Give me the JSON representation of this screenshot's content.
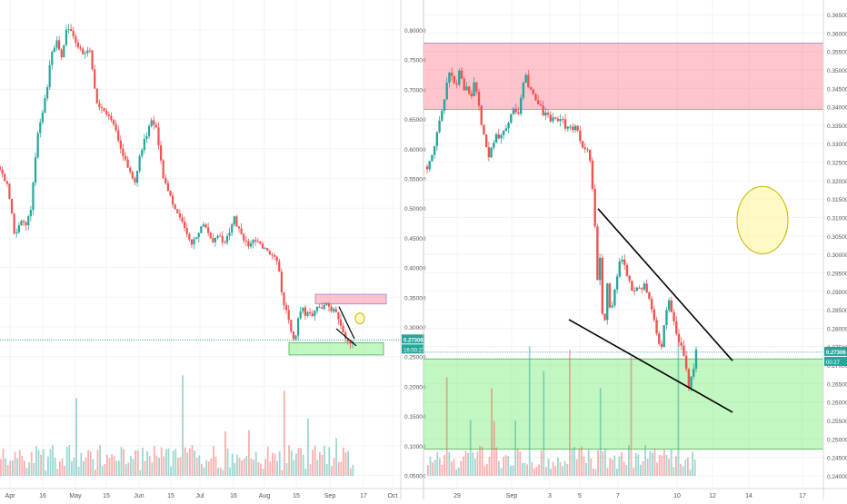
{
  "chart_data": [
    {
      "type": "candlestick",
      "panel": "left",
      "x_tick_labels": [
        "Apr",
        "16",
        "May",
        "15",
        "Jun",
        "15",
        "Jul",
        "16",
        "Aug",
        "15",
        "Sep",
        "17",
        "Oct"
      ],
      "y_tick_labels": [
        "0.80000",
        "0.75000",
        "0.70000",
        "0.65000",
        "0.60000",
        "0.55000",
        "0.50000",
        "0.45000",
        "0.40000",
        "0.35000",
        "0.30000",
        "0.25000",
        "0.20000",
        "0.15000",
        "0.10000",
        "0.05000"
      ],
      "ylim": [
        0.02,
        0.85
      ],
      "price_line": 0.27306,
      "price_label": "0.27306",
      "time_label": "16:00:27",
      "close_path": [
        [
          0,
          0.595
        ],
        [
          8,
          0.56
        ],
        [
          12,
          0.52
        ],
        [
          16,
          0.47
        ],
        [
          22,
          0.49
        ],
        [
          30,
          0.49
        ],
        [
          34,
          0.52
        ],
        [
          38,
          0.6
        ],
        [
          42,
          0.66
        ],
        [
          48,
          0.71
        ],
        [
          52,
          0.74
        ],
        [
          56,
          0.8
        ],
        [
          62,
          0.83
        ],
        [
          68,
          0.8
        ],
        [
          74,
          0.86
        ],
        [
          80,
          0.84
        ],
        [
          86,
          0.82
        ],
        [
          92,
          0.8
        ],
        [
          98,
          0.82
        ],
        [
          102,
          0.77
        ],
        [
          106,
          0.72
        ],
        [
          110,
          0.7
        ],
        [
          116,
          0.7
        ],
        [
          122,
          0.68
        ],
        [
          128,
          0.66
        ],
        [
          134,
          0.62
        ],
        [
          138,
          0.61
        ],
        [
          144,
          0.58
        ],
        [
          148,
          0.56
        ],
        [
          154,
          0.62
        ],
        [
          160,
          0.65
        ],
        [
          166,
          0.68
        ],
        [
          172,
          0.67
        ],
        [
          176,
          0.62
        ],
        [
          180,
          0.57
        ],
        [
          186,
          0.55
        ],
        [
          192,
          0.52
        ],
        [
          198,
          0.5
        ],
        [
          204,
          0.48
        ],
        [
          210,
          0.45
        ],
        [
          216,
          0.46
        ],
        [
          222,
          0.49
        ],
        [
          228,
          0.48
        ],
        [
          234,
          0.45
        ],
        [
          240,
          0.47
        ],
        [
          246,
          0.45
        ],
        [
          252,
          0.47
        ],
        [
          258,
          0.5
        ],
        [
          262,
          0.48
        ],
        [
          268,
          0.46
        ],
        [
          274,
          0.45
        ],
        [
          280,
          0.46
        ],
        [
          286,
          0.45
        ],
        [
          292,
          0.44
        ],
        [
          298,
          0.43
        ],
        [
          304,
          0.42
        ],
        [
          308,
          0.39
        ],
        [
          312,
          0.34
        ],
        [
          316,
          0.32
        ],
        [
          320,
          0.29
        ],
        [
          324,
          0.27
        ],
        [
          328,
          0.31
        ],
        [
          332,
          0.34
        ],
        [
          336,
          0.32
        ],
        [
          340,
          0.33
        ],
        [
          344,
          0.32
        ],
        [
          348,
          0.33
        ],
        [
          352,
          0.33
        ],
        [
          356,
          0.34
        ],
        [
          360,
          0.34
        ],
        [
          364,
          0.33
        ],
        [
          368,
          0.33
        ],
        [
          372,
          0.31
        ],
        [
          376,
          0.3
        ],
        [
          380,
          0.28
        ],
        [
          384,
          0.27
        ],
        [
          388,
          0.27
        ]
      ],
      "annotations": [
        {
          "kind": "zone",
          "color": "red",
          "y_range": [
            0.34,
            0.358
          ],
          "x_range": [
            347,
            425
          ]
        },
        {
          "kind": "zone",
          "color": "green",
          "y_range": [
            0.245,
            0.268
          ],
          "x_range": [
            318,
            422
          ]
        },
        {
          "kind": "falling-wedge",
          "upper": [
            [
              373,
              0.335
            ],
            [
              390,
              0.275
            ]
          ],
          "lower": [
            [
              370,
              0.294
            ],
            [
              392,
              0.262
            ]
          ]
        },
        {
          "kind": "ellipse",
          "center": [
            396,
            0.313
          ]
        }
      ]
    },
    {
      "type": "candlestick",
      "panel": "right",
      "x_tick_labels": [
        "29",
        "Sep",
        "3",
        "5",
        "7",
        "10",
        "12",
        "14",
        "17"
      ],
      "y_tick_labels": [
        "0.36500",
        "0.36000",
        "0.35500",
        "0.35000",
        "0.34500",
        "0.34000",
        "0.33500",
        "0.33000",
        "0.32500",
        "0.32000",
        "0.31500",
        "0.31000",
        "0.30500",
        "0.30000",
        "0.29500",
        "0.29000",
        "0.28500",
        "0.28000",
        "0.27500",
        "0.27000",
        "0.26500",
        "0.26000",
        "0.25500",
        "0.25000",
        "0.24500",
        "0.24000"
      ],
      "ylim": [
        0.2385,
        0.3675
      ],
      "price_line": 0.27306,
      "price_label": "0.27306",
      "time_label": "00:27",
      "close_path": [
        [
          0,
          0.325
        ],
        [
          4,
          0.327
        ],
        [
          8,
          0.33
        ],
        [
          12,
          0.337
        ],
        [
          16,
          0.341
        ],
        [
          20,
          0.345
        ],
        [
          24,
          0.352
        ],
        [
          28,
          0.349
        ],
        [
          32,
          0.347
        ],
        [
          36,
          0.353
        ],
        [
          40,
          0.346
        ],
        [
          44,
          0.348
        ],
        [
          48,
          0.344
        ],
        [
          52,
          0.349
        ],
        [
          56,
          0.343
        ],
        [
          60,
          0.337
        ],
        [
          64,
          0.332
        ],
        [
          68,
          0.327
        ],
        [
          72,
          0.331
        ],
        [
          76,
          0.334
        ],
        [
          80,
          0.332
        ],
        [
          84,
          0.335
        ],
        [
          88,
          0.337
        ],
        [
          92,
          0.339
        ],
        [
          96,
          0.342
        ],
        [
          100,
          0.339
        ],
        [
          104,
          0.346
        ],
        [
          108,
          0.352
        ],
        [
          112,
          0.347
        ],
        [
          116,
          0.345
        ],
        [
          120,
          0.344
        ],
        [
          124,
          0.342
        ],
        [
          128,
          0.339
        ],
        [
          132,
          0.341
        ],
        [
          136,
          0.337
        ],
        [
          140,
          0.339
        ],
        [
          144,
          0.338
        ],
        [
          148,
          0.339
        ],
        [
          152,
          0.336
        ],
        [
          156,
          0.337
        ],
        [
          160,
          0.335
        ],
        [
          164,
          0.336
        ],
        [
          168,
          0.333
        ],
        [
          172,
          0.33
        ],
        [
          176,
          0.33
        ],
        [
          180,
          0.325
        ],
        [
          184,
          0.311
        ],
        [
          188,
          0.29
        ],
        [
          190,
          0.3
        ],
        [
          192,
          0.285
        ],
        [
          194,
          0.281
        ],
        [
          196,
          0.283
        ],
        [
          198,
          0.293
        ],
        [
          200,
          0.285
        ],
        [
          204,
          0.286
        ],
        [
          208,
          0.293
        ],
        [
          212,
          0.299
        ],
        [
          214,
          0.3
        ],
        [
          218,
          0.296
        ],
        [
          222,
          0.293
        ],
        [
          226,
          0.289
        ],
        [
          230,
          0.292
        ],
        [
          234,
          0.29
        ],
        [
          238,
          0.292
        ],
        [
          242,
          0.29
        ],
        [
          246,
          0.287
        ],
        [
          250,
          0.282
        ],
        [
          254,
          0.276
        ],
        [
          258,
          0.274
        ],
        [
          262,
          0.284
        ],
        [
          266,
          0.287
        ],
        [
          268,
          0.285
        ],
        [
          272,
          0.281
        ],
        [
          276,
          0.276
        ],
        [
          280,
          0.274
        ],
        [
          284,
          0.27
        ],
        [
          286,
          0.266
        ],
        [
          288,
          0.263
        ],
        [
          290,
          0.265
        ],
        [
          292,
          0.267
        ],
        [
          294,
          0.269
        ],
        [
          296,
          0.273
        ]
      ],
      "annotations": [
        {
          "kind": "zone",
          "color": "red",
          "y_range": [
            0.341,
            0.3595
          ]
        },
        {
          "kind": "zone",
          "color": "green",
          "y_range": [
            0.246,
            0.2712
          ]
        },
        {
          "kind": "trendline",
          "points": [
            [
              188,
              0.3132
            ],
            [
              336,
              0.2707
            ]
          ]
        },
        {
          "kind": "trendline",
          "points": [
            [
              156,
              0.2822
            ],
            [
              336,
              0.2563
            ]
          ]
        },
        {
          "kind": "ellipse",
          "center": [
            839,
            0.31
          ]
        }
      ]
    }
  ]
}
